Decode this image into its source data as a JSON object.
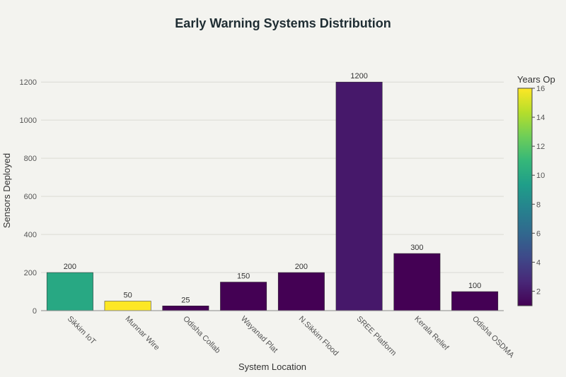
{
  "chart_data": {
    "type": "bar",
    "title": "Early Warning Systems Distribution",
    "xlabel": "System Location",
    "ylabel": "Sensors Deployed",
    "ylim": [
      0,
      1260
    ],
    "yticks": [
      0,
      200,
      400,
      600,
      800,
      1000,
      1200
    ],
    "categories": [
      "Sikkim IoT",
      "Munnar Wire",
      "Odisha Collab",
      "Wayanad Plat",
      "N.Sikkim Flood",
      "SREE Platform",
      "Kerala Relief",
      "Odisha OSDMA"
    ],
    "values": [
      200,
      50,
      25,
      150,
      200,
      1200,
      300,
      100
    ],
    "data_labels": [
      "200",
      "50",
      "25",
      "150",
      "200",
      "1200",
      "300",
      "100"
    ],
    "color_values": [
      10,
      16,
      1,
      1,
      1,
      2,
      1,
      1
    ],
    "colorbar": {
      "title": "Years Op",
      "range": [
        1,
        16
      ],
      "ticks": [
        2,
        4,
        6,
        8,
        10,
        12,
        14,
        16
      ],
      "tick_labels": [
        "2",
        "4",
        "6",
        "8",
        "10",
        "12",
        "14",
        "16"
      ],
      "colorscale": "Viridis"
    },
    "grid": true,
    "legend": "none"
  }
}
